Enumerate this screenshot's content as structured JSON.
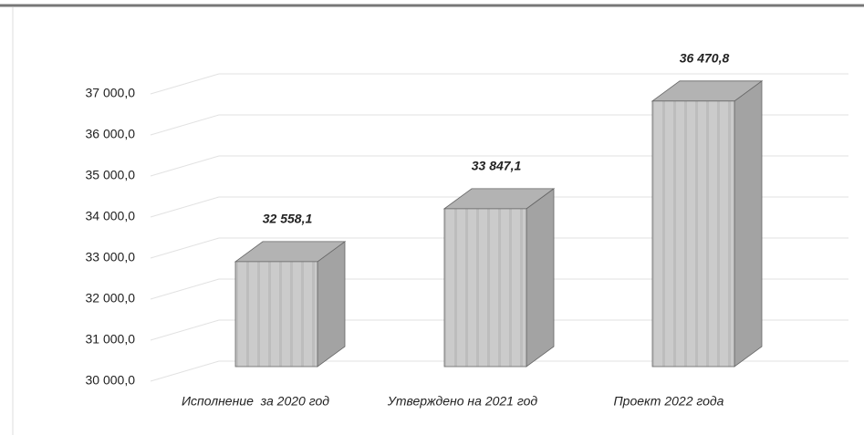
{
  "chart_data": {
    "type": "bar",
    "categories": [
      "Исполнение  за 2020 год",
      "Утверждено на 2021 год",
      "Проект 2022 года"
    ],
    "values": [
      32558.1,
      33847.1,
      36470.8
    ],
    "value_labels": [
      "32 558,1",
      "33 847,1",
      "36 470,8"
    ],
    "color": "#c9c9c9",
    "ylim": [
      30000,
      37000
    ],
    "yticks": [
      {
        "value": 30000,
        "label": "30 000,0"
      },
      {
        "value": 31000,
        "label": "31 000,0"
      },
      {
        "value": 32000,
        "label": "32 000,0"
      },
      {
        "value": 33000,
        "label": "33 000,0"
      },
      {
        "value": 34000,
        "label": "34 000,0"
      },
      {
        "value": 35000,
        "label": "35 000,0"
      },
      {
        "value": 36000,
        "label": "36 000,0"
      },
      {
        "value": 37000,
        "label": "37 000,0"
      }
    ],
    "grid": true
  }
}
